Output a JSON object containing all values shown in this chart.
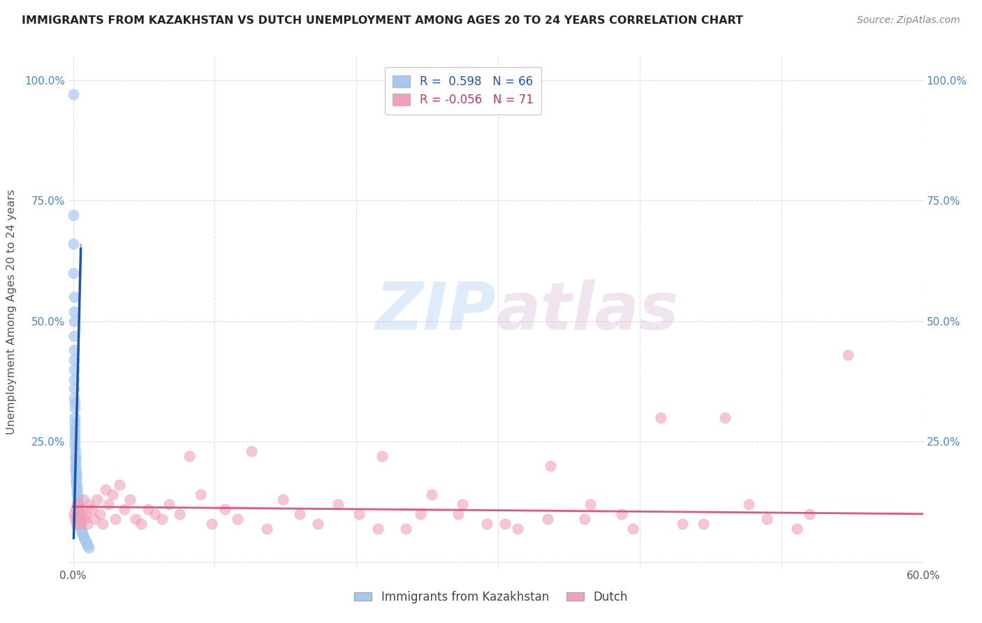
{
  "title": "IMMIGRANTS FROM KAZAKHSTAN VS DUTCH UNEMPLOYMENT AMONG AGES 20 TO 24 YEARS CORRELATION CHART",
  "source": "Source: ZipAtlas.com",
  "ylabel": "Unemployment Among Ages 20 to 24 years",
  "xlim": [
    -0.003,
    0.6
  ],
  "ylim": [
    -0.01,
    1.05
  ],
  "x_ticks": [
    0.0,
    0.1,
    0.2,
    0.3,
    0.4,
    0.5,
    0.6
  ],
  "x_tick_labels": [
    "0.0%",
    "",
    "",
    "",
    "",
    "",
    "60.0%"
  ],
  "y_ticks": [
    0.0,
    0.25,
    0.5,
    0.75,
    1.0
  ],
  "y_tick_labels_left": [
    "",
    "25.0%",
    "50.0%",
    "75.0%",
    "100.0%"
  ],
  "y_tick_labels_right": [
    "",
    "25.0%",
    "50.0%",
    "75.0%",
    "100.0%"
  ],
  "blue_color": "#A8C8F0",
  "pink_color": "#F0A0B8",
  "blue_line_color": "#1855B0",
  "pink_line_color": "#E05878",
  "legend_r_blue": "0.598",
  "legend_n_blue": "66",
  "legend_r_pink": "-0.056",
  "legend_n_pink": "71",
  "watermark_zip": "ZIP",
  "watermark_atlas": "atlas",
  "background_color": "#ffffff",
  "grid_color": "#dddddd",
  "blue_x": [
    0.0002,
    0.0003,
    0.0003,
    0.0004,
    0.0005,
    0.0005,
    0.0006,
    0.0006,
    0.0007,
    0.0007,
    0.0008,
    0.0008,
    0.0009,
    0.0009,
    0.001,
    0.001,
    0.0011,
    0.0011,
    0.0012,
    0.0012,
    0.0013,
    0.0013,
    0.0014,
    0.0015,
    0.0015,
    0.0016,
    0.0016,
    0.0017,
    0.0018,
    0.0019,
    0.002,
    0.002,
    0.0021,
    0.0022,
    0.0023,
    0.0024,
    0.0025,
    0.0026,
    0.0027,
    0.0028,
    0.003,
    0.003,
    0.0032,
    0.0033,
    0.0035,
    0.0036,
    0.0038,
    0.004,
    0.0042,
    0.0044,
    0.0046,
    0.0048,
    0.005,
    0.0053,
    0.0056,
    0.006,
    0.0064,
    0.0068,
    0.0072,
    0.0076,
    0.008,
    0.0085,
    0.009,
    0.0095,
    0.01,
    0.011
  ],
  "blue_y": [
    0.97,
    0.72,
    0.66,
    0.6,
    0.55,
    0.52,
    0.5,
    0.47,
    0.44,
    0.42,
    0.4,
    0.38,
    0.36,
    0.34,
    0.33,
    0.32,
    0.3,
    0.29,
    0.28,
    0.27,
    0.26,
    0.25,
    0.24,
    0.23,
    0.22,
    0.215,
    0.21,
    0.2,
    0.195,
    0.19,
    0.185,
    0.18,
    0.175,
    0.17,
    0.165,
    0.16,
    0.155,
    0.15,
    0.145,
    0.14,
    0.135,
    0.13,
    0.125,
    0.12,
    0.115,
    0.11,
    0.105,
    0.1,
    0.095,
    0.09,
    0.085,
    0.082,
    0.078,
    0.075,
    0.07,
    0.065,
    0.062,
    0.058,
    0.055,
    0.052,
    0.048,
    0.045,
    0.042,
    0.04,
    0.035,
    0.03
  ],
  "pink_x": [
    0.0005,
    0.001,
    0.0015,
    0.002,
    0.0025,
    0.003,
    0.0035,
    0.004,
    0.005,
    0.006,
    0.007,
    0.008,
    0.009,
    0.01,
    0.011,
    0.013,
    0.015,
    0.017,
    0.019,
    0.021,
    0.023,
    0.025,
    0.028,
    0.03,
    0.033,
    0.036,
    0.04,
    0.044,
    0.048,
    0.053,
    0.058,
    0.063,
    0.068,
    0.075,
    0.082,
    0.09,
    0.098,
    0.107,
    0.116,
    0.126,
    0.137,
    0.148,
    0.16,
    0.173,
    0.187,
    0.202,
    0.218,
    0.235,
    0.253,
    0.272,
    0.292,
    0.314,
    0.337,
    0.361,
    0.387,
    0.415,
    0.445,
    0.477,
    0.511,
    0.547,
    0.52,
    0.49,
    0.46,
    0.43,
    0.395,
    0.365,
    0.335,
    0.305,
    0.275,
    0.245,
    0.215
  ],
  "pink_y": [
    0.1,
    0.09,
    0.11,
    0.08,
    0.12,
    0.1,
    0.09,
    0.11,
    0.08,
    0.1,
    0.13,
    0.09,
    0.1,
    0.08,
    0.12,
    0.11,
    0.09,
    0.13,
    0.1,
    0.08,
    0.15,
    0.12,
    0.14,
    0.09,
    0.16,
    0.11,
    0.13,
    0.09,
    0.08,
    0.11,
    0.1,
    0.09,
    0.12,
    0.1,
    0.22,
    0.14,
    0.08,
    0.11,
    0.09,
    0.23,
    0.07,
    0.13,
    0.1,
    0.08,
    0.12,
    0.1,
    0.22,
    0.07,
    0.14,
    0.1,
    0.08,
    0.07,
    0.2,
    0.09,
    0.1,
    0.3,
    0.08,
    0.12,
    0.07,
    0.43,
    0.1,
    0.09,
    0.3,
    0.08,
    0.07,
    0.12,
    0.09,
    0.08,
    0.12,
    0.1,
    0.07
  ]
}
